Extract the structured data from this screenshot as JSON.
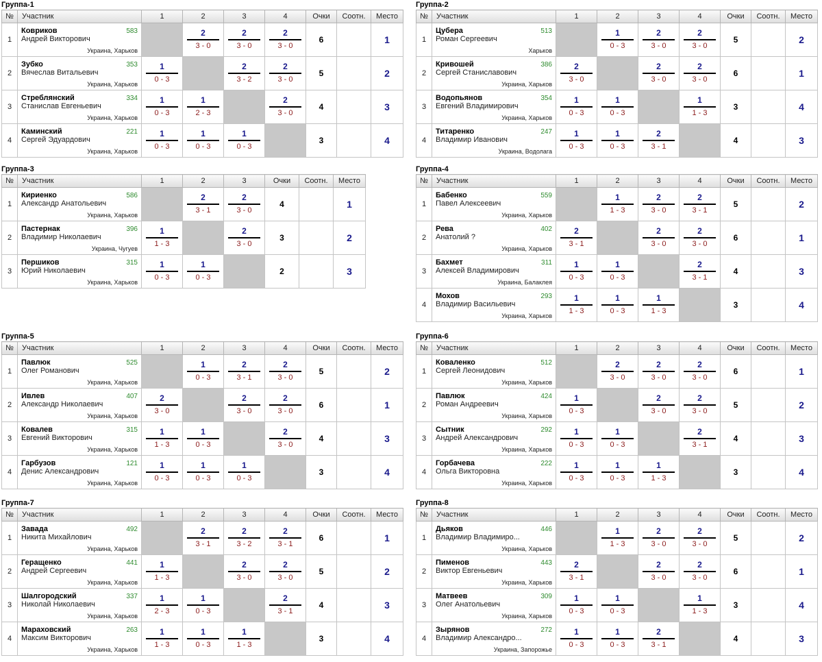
{
  "headers": {
    "num": "№",
    "participant": "Участник",
    "points": "Очки",
    "ratio": "Соотн.",
    "place": "Место"
  },
  "groups": [
    {
      "title": "Группа-1",
      "cols": [
        "1",
        "2",
        "3",
        "4"
      ],
      "rows": [
        {
          "num": "1",
          "last": "Ковриков",
          "first": "Андрей Викторович",
          "rating": "583",
          "city": "Украина, Харьков",
          "results": [
            null,
            {
              "p": "2",
              "s": "3 - 0"
            },
            {
              "p": "2",
              "s": "3 - 0"
            },
            {
              "p": "2",
              "s": "3 - 0"
            }
          ],
          "points": "6",
          "ratio": "",
          "place": "1"
        },
        {
          "num": "2",
          "last": "Зубко",
          "first": "Вячеслав Витальевич",
          "rating": "353",
          "city": "Украина, Харьков",
          "results": [
            {
              "p": "1",
              "s": "0 - 3"
            },
            null,
            {
              "p": "2",
              "s": "3 - 2"
            },
            {
              "p": "2",
              "s": "3 - 0"
            }
          ],
          "points": "5",
          "ratio": "",
          "place": "2"
        },
        {
          "num": "3",
          "last": "Стреблянский",
          "first": "Станислав Евгеньевич",
          "rating": "334",
          "city": "Украина, Харьков",
          "results": [
            {
              "p": "1",
              "s": "0 - 3"
            },
            {
              "p": "1",
              "s": "2 - 3"
            },
            null,
            {
              "p": "2",
              "s": "3 - 0"
            }
          ],
          "points": "4",
          "ratio": "",
          "place": "3"
        },
        {
          "num": "4",
          "last": "Каминский",
          "first": "Сергей Эдуардович",
          "rating": "221",
          "city": "Украина, Харьков",
          "results": [
            {
              "p": "1",
              "s": "0 - 3"
            },
            {
              "p": "1",
              "s": "0 - 3"
            },
            {
              "p": "1",
              "s": "0 - 3"
            },
            null
          ],
          "points": "3",
          "ratio": "",
          "place": "4"
        }
      ]
    },
    {
      "title": "Группа-2",
      "cols": [
        "1",
        "2",
        "3",
        "4"
      ],
      "rows": [
        {
          "num": "1",
          "last": "Цубера",
          "first": "Роман Сергеевич",
          "rating": "513",
          "city": "Харьков",
          "results": [
            null,
            {
              "p": "1",
              "s": "0 - 3"
            },
            {
              "p": "2",
              "s": "3 - 0"
            },
            {
              "p": "2",
              "s": "3 - 0"
            }
          ],
          "points": "5",
          "ratio": "",
          "place": "2"
        },
        {
          "num": "2",
          "last": "Кривошей",
          "first": "Сергей Станиславович",
          "rating": "386",
          "city": "Украина, Харьков",
          "results": [
            {
              "p": "2",
              "s": "3 - 0"
            },
            null,
            {
              "p": "2",
              "s": "3 - 0"
            },
            {
              "p": "2",
              "s": "3 - 0"
            }
          ],
          "points": "6",
          "ratio": "",
          "place": "1"
        },
        {
          "num": "3",
          "last": "Водопьянов",
          "first": "Евгений Владимирович",
          "rating": "354",
          "city": "Украина, Харьков",
          "results": [
            {
              "p": "1",
              "s": "0 - 3"
            },
            {
              "p": "1",
              "s": "0 - 3"
            },
            null,
            {
              "p": "1",
              "s": "1 - 3"
            }
          ],
          "points": "3",
          "ratio": "",
          "place": "4"
        },
        {
          "num": "4",
          "last": "Титаренко",
          "first": "Владимир Иванович",
          "rating": "247",
          "city": "Украина, Водолага",
          "results": [
            {
              "p": "1",
              "s": "0 - 3"
            },
            {
              "p": "1",
              "s": "0 - 3"
            },
            {
              "p": "2",
              "s": "3 - 1"
            },
            null
          ],
          "points": "4",
          "ratio": "",
          "place": "3"
        }
      ]
    },
    {
      "title": "Группа-3",
      "cols": [
        "1",
        "2",
        "3"
      ],
      "rows": [
        {
          "num": "1",
          "last": "Кириенко",
          "first": "Александр Анатольевич",
          "rating": "586",
          "city": "Украина, Харьков",
          "results": [
            null,
            {
              "p": "2",
              "s": "3 - 1"
            },
            {
              "p": "2",
              "s": "3 - 0"
            }
          ],
          "points": "4",
          "ratio": "",
          "place": "1"
        },
        {
          "num": "2",
          "last": "Пастернак",
          "first": "Владимир Николаевич",
          "rating": "396",
          "city": "Украина, Чугуев",
          "results": [
            {
              "p": "1",
              "s": "1 - 3"
            },
            null,
            {
              "p": "2",
              "s": "3 - 0"
            }
          ],
          "points": "3",
          "ratio": "",
          "place": "2"
        },
        {
          "num": "3",
          "last": "Першиков",
          "first": "Юрий Николаевич",
          "rating": "315",
          "city": "Украина, Харьков",
          "results": [
            {
              "p": "1",
              "s": "0 - 3"
            },
            {
              "p": "1",
              "s": "0 - 3"
            },
            null
          ],
          "points": "2",
          "ratio": "",
          "place": "3"
        }
      ]
    },
    {
      "title": "Группа-4",
      "cols": [
        "1",
        "2",
        "3",
        "4"
      ],
      "rows": [
        {
          "num": "1",
          "last": "Бабенко",
          "first": "Павел Алексеевич",
          "rating": "559",
          "city": "Украина, Харьков",
          "results": [
            null,
            {
              "p": "1",
              "s": "1 - 3"
            },
            {
              "p": "2",
              "s": "3 - 0"
            },
            {
              "p": "2",
              "s": "3 - 1"
            }
          ],
          "points": "5",
          "ratio": "",
          "place": "2"
        },
        {
          "num": "2",
          "last": "Рева",
          "first": "Анатолий ?",
          "rating": "402",
          "city": "Украина, Харьков",
          "results": [
            {
              "p": "2",
              "s": "3 - 1"
            },
            null,
            {
              "p": "2",
              "s": "3 - 0"
            },
            {
              "p": "2",
              "s": "3 - 0"
            }
          ],
          "points": "6",
          "ratio": "",
          "place": "1"
        },
        {
          "num": "3",
          "last": "Бахмет",
          "first": "Алексей Владимирович",
          "rating": "311",
          "city": "Украина, Балаклея",
          "results": [
            {
              "p": "1",
              "s": "0 - 3"
            },
            {
              "p": "1",
              "s": "0 - 3"
            },
            null,
            {
              "p": "2",
              "s": "3 - 1"
            }
          ],
          "points": "4",
          "ratio": "",
          "place": "3"
        },
        {
          "num": "4",
          "last": "Мохов",
          "first": "Владимир Васильевич",
          "rating": "293",
          "city": "Украина, Харьков",
          "results": [
            {
              "p": "1",
              "s": "1 - 3"
            },
            {
              "p": "1",
              "s": "0 - 3"
            },
            {
              "p": "1",
              "s": "1 - 3"
            },
            null
          ],
          "points": "3",
          "ratio": "",
          "place": "4"
        }
      ]
    },
    {
      "title": "Группа-5",
      "cols": [
        "1",
        "2",
        "3",
        "4"
      ],
      "rows": [
        {
          "num": "1",
          "last": "Павлюк",
          "first": "Олег Романович",
          "rating": "525",
          "city": "Украина, Харьков",
          "results": [
            null,
            {
              "p": "1",
              "s": "0 - 3"
            },
            {
              "p": "2",
              "s": "3 - 1"
            },
            {
              "p": "2",
              "s": "3 - 0"
            }
          ],
          "points": "5",
          "ratio": "",
          "place": "2"
        },
        {
          "num": "2",
          "last": "Ивлев",
          "first": "Александр Николаевич",
          "rating": "407",
          "city": "Украина, Харьков",
          "results": [
            {
              "p": "2",
              "s": "3 - 0"
            },
            null,
            {
              "p": "2",
              "s": "3 - 0"
            },
            {
              "p": "2",
              "s": "3 - 0"
            }
          ],
          "points": "6",
          "ratio": "",
          "place": "1"
        },
        {
          "num": "3",
          "last": "Ковалев",
          "first": "Евгений Викторович",
          "rating": "315",
          "city": "Украина, Харьков",
          "results": [
            {
              "p": "1",
              "s": "1 - 3"
            },
            {
              "p": "1",
              "s": "0 - 3"
            },
            null,
            {
              "p": "2",
              "s": "3 - 0"
            }
          ],
          "points": "4",
          "ratio": "",
          "place": "3"
        },
        {
          "num": "4",
          "last": "Гарбузов",
          "first": "Денис Александрович",
          "rating": "121",
          "city": "Украина, Харьков",
          "results": [
            {
              "p": "1",
              "s": "0 - 3"
            },
            {
              "p": "1",
              "s": "0 - 3"
            },
            {
              "p": "1",
              "s": "0 - 3"
            },
            null
          ],
          "points": "3",
          "ratio": "",
          "place": "4"
        }
      ]
    },
    {
      "title": "Группа-6",
      "cols": [
        "1",
        "2",
        "3",
        "4"
      ],
      "rows": [
        {
          "num": "1",
          "last": "Коваленко",
          "first": "Сергей Леонидович",
          "rating": "512",
          "city": "Украина, Харьков",
          "results": [
            null,
            {
              "p": "2",
              "s": "3 - 0"
            },
            {
              "p": "2",
              "s": "3 - 0"
            },
            {
              "p": "2",
              "s": "3 - 0"
            }
          ],
          "points": "6",
          "ratio": "",
          "place": "1"
        },
        {
          "num": "2",
          "last": "Павлюк",
          "first": "Роман Андреевич",
          "rating": "424",
          "city": "Украина, Харьков",
          "results": [
            {
              "p": "1",
              "s": "0 - 3"
            },
            null,
            {
              "p": "2",
              "s": "3 - 0"
            },
            {
              "p": "2",
              "s": "3 - 0"
            }
          ],
          "points": "5",
          "ratio": "",
          "place": "2"
        },
        {
          "num": "3",
          "last": "Сытник",
          "first": "Андрей Александрович",
          "rating": "292",
          "city": "Украина, Харьков",
          "results": [
            {
              "p": "1",
              "s": "0 - 3"
            },
            {
              "p": "1",
              "s": "0 - 3"
            },
            null,
            {
              "p": "2",
              "s": "3 - 1"
            }
          ],
          "points": "4",
          "ratio": "",
          "place": "3"
        },
        {
          "num": "4",
          "last": "Горбачева",
          "first": "Ольга Викторовна",
          "rating": "222",
          "city": "Украина, Харьков",
          "results": [
            {
              "p": "1",
              "s": "0 - 3"
            },
            {
              "p": "1",
              "s": "0 - 3"
            },
            {
              "p": "1",
              "s": "1 - 3"
            },
            null
          ],
          "points": "3",
          "ratio": "",
          "place": "4"
        }
      ]
    },
    {
      "title": "Группа-7",
      "cols": [
        "1",
        "2",
        "3",
        "4"
      ],
      "rows": [
        {
          "num": "1",
          "last": "Завада",
          "first": "Никита Михайлович",
          "rating": "492",
          "city": "Украина, Харьков",
          "results": [
            null,
            {
              "p": "2",
              "s": "3 - 1"
            },
            {
              "p": "2",
              "s": "3 - 2"
            },
            {
              "p": "2",
              "s": "3 - 1"
            }
          ],
          "points": "6",
          "ratio": "",
          "place": "1"
        },
        {
          "num": "2",
          "last": "Геращенко",
          "first": "Андрей Сергеевич",
          "rating": "441",
          "city": "Украина, Харьков",
          "results": [
            {
              "p": "1",
              "s": "1 - 3"
            },
            null,
            {
              "p": "2",
              "s": "3 - 0"
            },
            {
              "p": "2",
              "s": "3 - 0"
            }
          ],
          "points": "5",
          "ratio": "",
          "place": "2"
        },
        {
          "num": "3",
          "last": "Шалгородский",
          "first": "Николай Николаевич",
          "rating": "337",
          "city": "Украина, Харьков",
          "results": [
            {
              "p": "1",
              "s": "2 - 3"
            },
            {
              "p": "1",
              "s": "0 - 3"
            },
            null,
            {
              "p": "2",
              "s": "3 - 1"
            }
          ],
          "points": "4",
          "ratio": "",
          "place": "3"
        },
        {
          "num": "4",
          "last": "Мараховский",
          "first": "Максим Викторович",
          "rating": "263",
          "city": "Украина, Харьков",
          "results": [
            {
              "p": "1",
              "s": "1 - 3"
            },
            {
              "p": "1",
              "s": "0 - 3"
            },
            {
              "p": "1",
              "s": "1 - 3"
            },
            null
          ],
          "points": "3",
          "ratio": "",
          "place": "4"
        }
      ]
    },
    {
      "title": "Группа-8",
      "cols": [
        "1",
        "2",
        "3",
        "4"
      ],
      "rows": [
        {
          "num": "1",
          "last": "Дьяков",
          "first": "Владимир Владимиро...",
          "rating": "446",
          "city": "Украина, Харьков",
          "results": [
            null,
            {
              "p": "1",
              "s": "1 - 3"
            },
            {
              "p": "2",
              "s": "3 - 0"
            },
            {
              "p": "2",
              "s": "3 - 0"
            }
          ],
          "points": "5",
          "ratio": "",
          "place": "2"
        },
        {
          "num": "2",
          "last": "Пименов",
          "first": "Виктор Евгеньевич",
          "rating": "443",
          "city": "Украина, Харьков",
          "results": [
            {
              "p": "2",
              "s": "3 - 1"
            },
            null,
            {
              "p": "2",
              "s": "3 - 0"
            },
            {
              "p": "2",
              "s": "3 - 0"
            }
          ],
          "points": "6",
          "ratio": "",
          "place": "1"
        },
        {
          "num": "3",
          "last": "Матвеев",
          "first": "Олег Анатольевич",
          "rating": "309",
          "city": "Украина, Харьков",
          "results": [
            {
              "p": "1",
              "s": "0 - 3"
            },
            {
              "p": "1",
              "s": "0 - 3"
            },
            null,
            {
              "p": "1",
              "s": "1 - 3"
            }
          ],
          "points": "3",
          "ratio": "",
          "place": "4"
        },
        {
          "num": "4",
          "last": "Зырянов",
          "first": "Владимир Александро...",
          "rating": "272",
          "city": "Украина, Запорожье",
          "results": [
            {
              "p": "1",
              "s": "0 - 3"
            },
            {
              "p": "1",
              "s": "0 - 3"
            },
            {
              "p": "2",
              "s": "3 - 1"
            },
            null
          ],
          "points": "4",
          "ratio": "",
          "place": "3"
        }
      ]
    }
  ]
}
